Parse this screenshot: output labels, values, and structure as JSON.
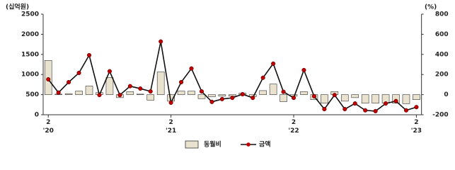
{
  "chart_data": {
    "type": "bar_line",
    "y_unit": "(십억원)",
    "y2_unit": "(%)",
    "categories": [
      "2\n'20",
      null,
      null,
      null,
      null,
      null,
      null,
      null,
      null,
      null,
      null,
      null,
      "2\n'21",
      null,
      null,
      null,
      null,
      null,
      null,
      null,
      null,
      null,
      null,
      null,
      "2\n'22",
      null,
      null,
      null,
      null,
      null,
      null,
      null,
      null,
      null,
      null,
      null,
      "2\n'23"
    ],
    "series": [
      {
        "name": "동월비",
        "kind": "bar",
        "axis": "y2",
        "color": "#e9e2cf",
        "stroke": "#333333",
        "values": [
          340,
          5,
          10,
          35,
          85,
          20,
          170,
          -30,
          30,
          5,
          -55,
          225,
          -65,
          35,
          35,
          -40,
          -20,
          -15,
          -15,
          15,
          -20,
          40,
          105,
          -70,
          -15,
          30,
          -50,
          -85,
          30,
          -65,
          -30,
          -85,
          -85,
          -85,
          -85,
          -90,
          -50
        ]
      },
      {
        "name": "금액",
        "kind": "line",
        "color": "#111111",
        "marker_color": "#c00000",
        "values": [
          880,
          550,
          810,
          1040,
          1480,
          490,
          1080,
          490,
          710,
          650,
          580,
          1820,
          300,
          810,
          1150,
          580,
          320,
          390,
          420,
          510,
          420,
          920,
          1270,
          570,
          420,
          1110,
          460,
          140,
          490,
          140,
          280,
          110,
          90,
          280,
          340,
          110,
          190
        ]
      }
    ],
    "ylim": [
      0,
      2500
    ],
    "yticks": [
      0,
      500,
      1000,
      1500,
      2000,
      2500
    ],
    "y2lim": [
      -200,
      800
    ],
    "y2ticks": [
      -200,
      0,
      200,
      400,
      600,
      800
    ]
  }
}
